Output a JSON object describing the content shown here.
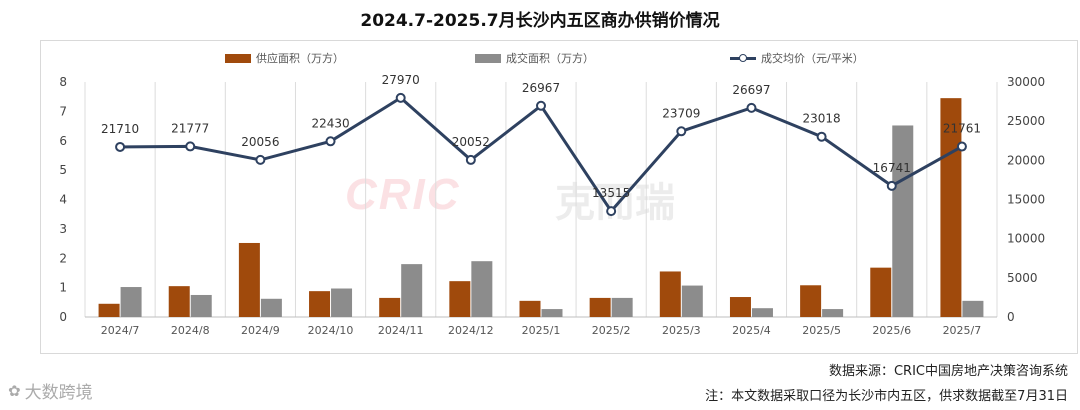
{
  "title": "2024.7-2025.7月长沙内五区商办供销价情况",
  "legend": {
    "supply": "供应面积（万方）",
    "deal": "成交面积（万方）",
    "price": "成交均价（元/平米）"
  },
  "watermark": {
    "brand_latin": "CRIC",
    "brand_cjk": "克而瑞"
  },
  "footer": {
    "source": "数据来源：CRIC中国房地产决策咨询系统",
    "note": "注：本文数据采取口径为长沙市内五区，供求数据截至7月31日",
    "brand": "大数跨境"
  },
  "colors": {
    "supply": "#a04a0c",
    "deal": "#8c8c8c",
    "price": "#2e4160"
  },
  "chart_data": {
    "type": "bar",
    "title": "2024.7-2025.7月长沙内五区商办供销价情况",
    "categories": [
      "2024/7",
      "2024/8",
      "2024/9",
      "2024/10",
      "2024/11",
      "2024/12",
      "2025/1",
      "2025/2",
      "2025/3",
      "2025/4",
      "2025/5",
      "2025/6",
      "2025/7"
    ],
    "series": [
      {
        "name": "供应面积（万方）",
        "type": "bar",
        "axis": "left",
        "values": [
          0.45,
          1.05,
          2.52,
          0.88,
          0.65,
          1.22,
          0.55,
          0.65,
          1.55,
          0.68,
          1.08,
          1.68,
          7.45
        ]
      },
      {
        "name": "成交面积（万方）",
        "type": "bar",
        "axis": "left",
        "values": [
          1.02,
          0.75,
          0.62,
          0.97,
          1.8,
          1.9,
          0.27,
          0.65,
          1.07,
          0.3,
          0.27,
          6.52,
          0.55
        ]
      },
      {
        "name": "成交均价（元/平米）",
        "type": "line",
        "axis": "right",
        "values": [
          21710,
          21777,
          20056,
          22430,
          27970,
          20052,
          26967,
          13515,
          23709,
          26697,
          23018,
          16741,
          21761
        ]
      }
    ],
    "ylim_left": [
      0,
      8
    ],
    "yticks_left": [
      0,
      1,
      2,
      3,
      4,
      5,
      6,
      7,
      8
    ],
    "ylim_right": [
      0,
      30000
    ],
    "yticks_right": [
      0,
      5000,
      10000,
      15000,
      20000,
      25000,
      30000
    ],
    "grid": "vertical",
    "legend_position": "top"
  }
}
